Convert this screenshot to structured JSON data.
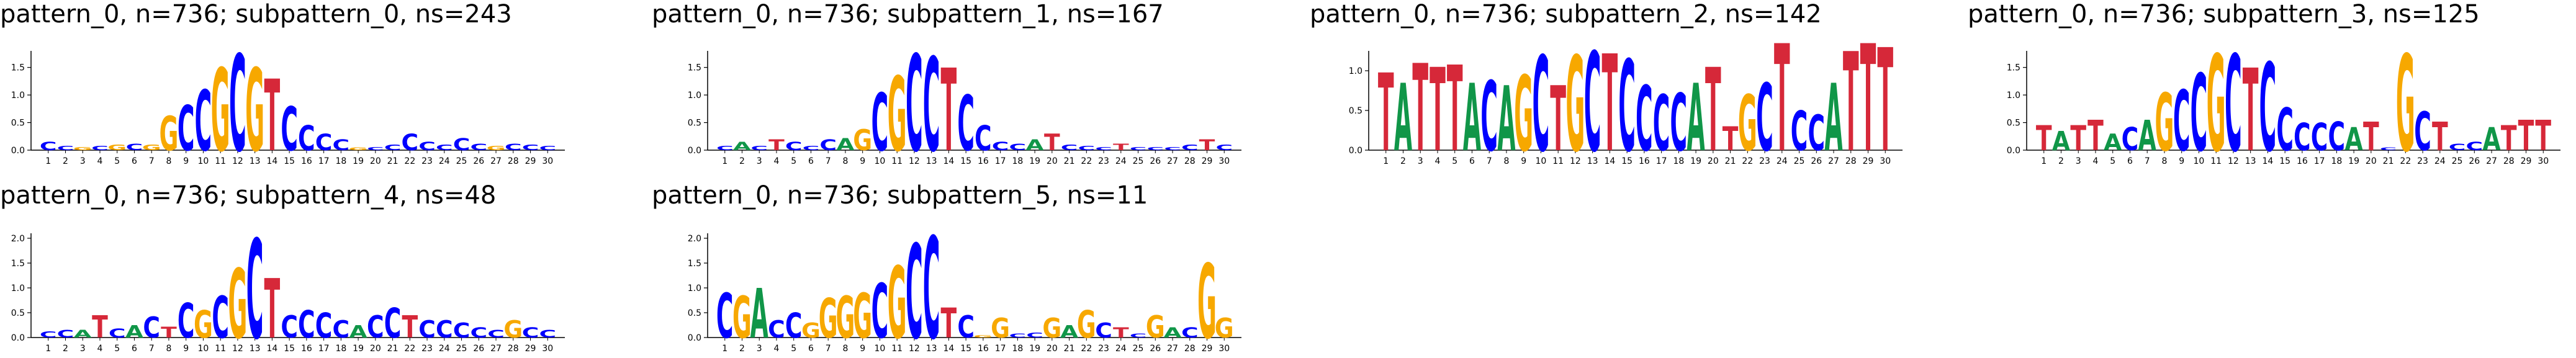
{
  "chart_data": [
    {
      "type": "sequence-logo",
      "title": "pattern_0, n=736; subpattern_0, ns=243",
      "positions": [
        1,
        2,
        3,
        4,
        5,
        6,
        7,
        8,
        9,
        10,
        11,
        12,
        13,
        14,
        15,
        16,
        17,
        18,
        19,
        20,
        21,
        22,
        23,
        24,
        25,
        26,
        27,
        28,
        29,
        30
      ],
      "yticks": [
        "0.0",
        "0.5",
        "1.0",
        "1.5"
      ],
      "ylim": [
        0,
        1.8
      ],
      "letters": [
        [
          "C",
          0.15
        ],
        [
          "C",
          0.08
        ],
        [
          "G",
          0.06
        ],
        [
          "C",
          0.08
        ],
        [
          "G",
          0.1
        ],
        [
          "C",
          0.12
        ],
        [
          "G",
          0.1
        ],
        [
          "G",
          0.62
        ],
        [
          "C",
          0.82
        ],
        [
          "C",
          1.1
        ],
        [
          "G",
          1.5
        ],
        [
          "C",
          1.75
        ],
        [
          "G",
          1.5
        ],
        [
          "T",
          1.3
        ],
        [
          "C",
          0.8
        ],
        [
          "C",
          0.45
        ],
        [
          "C",
          0.3
        ],
        [
          "C",
          0.2
        ],
        [
          "G",
          0.05
        ],
        [
          "C",
          0.06
        ],
        [
          "C",
          0.1
        ],
        [
          "C",
          0.3
        ],
        [
          "C",
          0.15
        ],
        [
          "C",
          0.1
        ],
        [
          "C",
          0.22
        ],
        [
          "C",
          0.12
        ],
        [
          "G",
          0.08
        ],
        [
          "C",
          0.12
        ],
        [
          "C",
          0.1
        ],
        [
          "C",
          0.08
        ]
      ]
    },
    {
      "type": "sequence-logo",
      "title": "pattern_0, n=736; subpattern_1, ns=167",
      "positions": [
        1,
        2,
        3,
        4,
        5,
        6,
        7,
        8,
        9,
        10,
        11,
        12,
        13,
        14,
        15,
        16,
        17,
        18,
        19,
        20,
        21,
        22,
        23,
        24,
        25,
        26,
        27,
        28,
        29,
        30
      ],
      "yticks": [
        "0.0",
        "0.5",
        "1.0",
        "1.5"
      ],
      "ylim": [
        0,
        1.8
      ],
      "letters": [
        [
          "C",
          0.08
        ],
        [
          "A",
          0.15
        ],
        [
          "C",
          0.08
        ],
        [
          "T",
          0.2
        ],
        [
          "C",
          0.15
        ],
        [
          "C",
          0.08
        ],
        [
          "C",
          0.2
        ],
        [
          "A",
          0.22
        ],
        [
          "G",
          0.38
        ],
        [
          "C",
          1.05
        ],
        [
          "G",
          1.35
        ],
        [
          "C",
          1.75
        ],
        [
          "C",
          1.7
        ],
        [
          "T",
          1.5
        ],
        [
          "C",
          1.0
        ],
        [
          "C",
          0.45
        ],
        [
          "C",
          0.15
        ],
        [
          "C",
          0.12
        ],
        [
          "A",
          0.2
        ],
        [
          "T",
          0.3
        ],
        [
          "C",
          0.1
        ],
        [
          "C",
          0.08
        ],
        [
          "C",
          0.06
        ],
        [
          "T",
          0.12
        ],
        [
          "C",
          0.06
        ],
        [
          "C",
          0.06
        ],
        [
          "C",
          0.06
        ],
        [
          "C",
          0.1
        ],
        [
          "T",
          0.2
        ],
        [
          "C",
          0.1
        ]
      ]
    },
    {
      "type": "sequence-logo",
      "title": "pattern_0, n=736; subpattern_2, ns=142",
      "positions": [
        1,
        2,
        3,
        4,
        5,
        6,
        7,
        8,
        9,
        10,
        11,
        12,
        13,
        14,
        15,
        16,
        17,
        18,
        19,
        20,
        21,
        22,
        23,
        24,
        25,
        26,
        27,
        28,
        29,
        30
      ],
      "yticks": [
        "0.0",
        "0.5",
        "1.0"
      ],
      "ylim": [
        0,
        1.25
      ],
      "letters": [
        [
          "T",
          0.98
        ],
        [
          "A",
          0.85
        ],
        [
          "T",
          1.1
        ],
        [
          "T",
          1.05
        ],
        [
          "T",
          1.08
        ],
        [
          "A",
          0.85
        ],
        [
          "C",
          0.88
        ],
        [
          "A",
          0.82
        ],
        [
          "G",
          0.95
        ],
        [
          "C",
          1.2
        ],
        [
          "T",
          0.82
        ],
        [
          "G",
          1.2
        ],
        [
          "C",
          1.25
        ],
        [
          "T",
          1.22
        ],
        [
          "C",
          1.15
        ],
        [
          "C",
          0.82
        ],
        [
          "C",
          0.7
        ],
        [
          "C",
          0.72
        ],
        [
          "A",
          0.85
        ],
        [
          "T",
          1.05
        ],
        [
          "T",
          0.3
        ],
        [
          "G",
          0.7
        ],
        [
          "C",
          0.85
        ],
        [
          "T",
          1.35
        ],
        [
          "C",
          0.5
        ],
        [
          "C",
          0.45
        ],
        [
          "A",
          0.85
        ],
        [
          "T",
          1.25
        ],
        [
          "T",
          1.35
        ],
        [
          "T",
          1.3
        ]
      ]
    },
    {
      "type": "sequence-logo",
      "title": "pattern_0, n=736; subpattern_3, ns=125",
      "positions": [
        1,
        2,
        3,
        4,
        5,
        6,
        7,
        8,
        9,
        10,
        11,
        12,
        13,
        14,
        15,
        16,
        17,
        18,
        19,
        20,
        21,
        22,
        23,
        24,
        25,
        26,
        27,
        28,
        29,
        30
      ],
      "yticks": [
        "0.0",
        "0.5",
        "1.0",
        "1.5"
      ],
      "ylim": [
        0,
        1.8
      ],
      "letters": [
        [
          "T",
          0.45
        ],
        [
          "A",
          0.35
        ],
        [
          "T",
          0.45
        ],
        [
          "T",
          0.55
        ],
        [
          "A",
          0.3
        ],
        [
          "C",
          0.42
        ],
        [
          "A",
          0.55
        ],
        [
          "G",
          1.05
        ],
        [
          "C",
          1.1
        ],
        [
          "C",
          1.4
        ],
        [
          "G",
          1.75
        ],
        [
          "C",
          1.75
        ],
        [
          "T",
          1.5
        ],
        [
          "C",
          1.6
        ],
        [
          "C",
          0.78
        ],
        [
          "C",
          0.5
        ],
        [
          "C",
          0.5
        ],
        [
          "C",
          0.52
        ],
        [
          "A",
          0.42
        ],
        [
          "T",
          0.52
        ],
        [
          "C",
          0.05
        ],
        [
          "G",
          1.75
        ],
        [
          "C",
          0.7
        ],
        [
          "T",
          0.52
        ],
        [
          "C",
          0.12
        ],
        [
          "C",
          0.15
        ],
        [
          "A",
          0.42
        ],
        [
          "T",
          0.45
        ],
        [
          "T",
          0.55
        ],
        [
          "T",
          0.55
        ]
      ]
    },
    {
      "type": "sequence-logo",
      "title": "pattern_0, n=736; subpattern_4, ns=48",
      "positions": [
        1,
        2,
        3,
        4,
        5,
        6,
        7,
        8,
        9,
        10,
        11,
        12,
        13,
        14,
        15,
        16,
        17,
        18,
        19,
        20,
        21,
        22,
        23,
        24,
        25,
        26,
        27,
        28,
        29,
        30
      ],
      "yticks": [
        "0.0",
        "0.5",
        "1.0",
        "1.5",
        "2.0"
      ],
      "ylim": [
        0,
        2.1
      ],
      "letters": [
        [
          "C",
          0.12
        ],
        [
          "C",
          0.15
        ],
        [
          "A",
          0.15
        ],
        [
          "T",
          0.45
        ],
        [
          "C",
          0.18
        ],
        [
          "A",
          0.25
        ],
        [
          "C",
          0.42
        ],
        [
          "T",
          0.22
        ],
        [
          "C",
          0.7
        ],
        [
          "G",
          0.55
        ],
        [
          "C",
          0.85
        ],
        [
          "G",
          1.4
        ],
        [
          "C",
          2.0
        ],
        [
          "T",
          1.2
        ],
        [
          "C",
          0.45
        ],
        [
          "C",
          0.55
        ],
        [
          "C",
          0.5
        ],
        [
          "C",
          0.35
        ],
        [
          "A",
          0.25
        ],
        [
          "C",
          0.45
        ],
        [
          "C",
          0.6
        ],
        [
          "T",
          0.45
        ],
        [
          "C",
          0.35
        ],
        [
          "C",
          0.35
        ],
        [
          "C",
          0.3
        ],
        [
          "C",
          0.2
        ],
        [
          "C",
          0.15
        ],
        [
          "G",
          0.35
        ],
        [
          "C",
          0.2
        ],
        [
          "C",
          0.15
        ]
      ]
    },
    {
      "type": "sequence-logo",
      "title": "pattern_0, n=736; subpattern_5, ns=11",
      "positions": [
        1,
        2,
        3,
        4,
        5,
        6,
        7,
        8,
        9,
        10,
        11,
        12,
        13,
        14,
        15,
        16,
        17,
        18,
        19,
        20,
        21,
        22,
        23,
        24,
        25,
        26,
        27,
        28,
        29,
        30
      ],
      "yticks": [
        "0.0",
        "0.5",
        "1.0",
        "1.5",
        "2.0"
      ],
      "ylim": [
        0,
        2.1
      ],
      "letters": [
        [
          "C",
          0.9
        ],
        [
          "G",
          0.85
        ],
        [
          "A",
          1.0
        ],
        [
          "C",
          0.35
        ],
        [
          "C",
          0.5
        ],
        [
          "G",
          0.3
        ],
        [
          "G",
          0.8
        ],
        [
          "G",
          0.85
        ],
        [
          "G",
          0.9
        ],
        [
          "C",
          1.1
        ],
        [
          "G",
          1.45
        ],
        [
          "C",
          1.9
        ],
        [
          "C",
          2.05
        ],
        [
          "T",
          0.6
        ],
        [
          "C",
          0.45
        ],
        [
          "G",
          0.05
        ],
        [
          "G",
          0.4
        ],
        [
          "C",
          0.08
        ],
        [
          "C",
          0.1
        ],
        [
          "G",
          0.4
        ],
        [
          "A",
          0.25
        ],
        [
          "G",
          0.55
        ],
        [
          "C",
          0.3
        ],
        [
          "T",
          0.2
        ],
        [
          "C",
          0.08
        ],
        [
          "G",
          0.45
        ],
        [
          "A",
          0.2
        ],
        [
          "C",
          0.2
        ],
        [
          "G",
          1.5
        ],
        [
          "G",
          0.4
        ]
      ]
    }
  ],
  "colors": {
    "A": "#109648",
    "C": "#0000ff",
    "G": "#f7a800",
    "T": "#d62839",
    "axis": "#000000"
  }
}
